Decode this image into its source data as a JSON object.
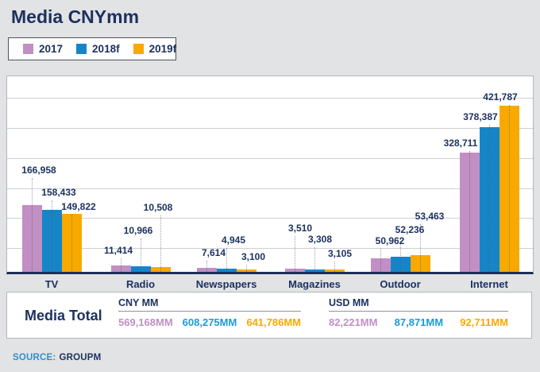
{
  "title": "Media CNYmm",
  "legend": [
    {
      "label": "2017",
      "color": "#c18fc3"
    },
    {
      "label": "2018f",
      "color": "#1585c8"
    },
    {
      "label": "2019f",
      "color": "#f8a900"
    }
  ],
  "chart_data": {
    "type": "bar",
    "title": "Media CNYmm",
    "categories": [
      "TV",
      "Radio",
      "Newspapers",
      "Magazines",
      "Outdoor",
      "Internet"
    ],
    "series": [
      {
        "name": "2017",
        "color": "#c18fc3",
        "values": [
          166958,
          11414,
          7614,
          3510,
          50962,
          328711
        ]
      },
      {
        "name": "2018f",
        "color": "#1585c8",
        "values": [
          158433,
          10966,
          4945,
          3308,
          52236,
          378387
        ]
      },
      {
        "name": "2019f",
        "color": "#f8a900",
        "values": [
          149822,
          10508,
          3100,
          3105,
          53463,
          421787
        ]
      }
    ],
    "xlabel": "",
    "ylabel": "",
    "ylim": [
      0,
      500000
    ],
    "grid": true,
    "legend_position": "top-left",
    "value_labels_visible": true
  },
  "media_total": {
    "label": "Media Total",
    "value_colors": [
      "#c08fc4",
      "#1b9ad8",
      "#f8a900"
    ],
    "sections": [
      {
        "header": "CNY MM",
        "values": [
          "569,168MM",
          "608,275MM",
          "641,786MM"
        ]
      },
      {
        "header": "USD MM",
        "values": [
          "82,221MM",
          "87,871MM",
          "92,711MM"
        ]
      }
    ]
  },
  "source": {
    "prefix": "SOURCE:",
    "name": "GROUPM"
  }
}
